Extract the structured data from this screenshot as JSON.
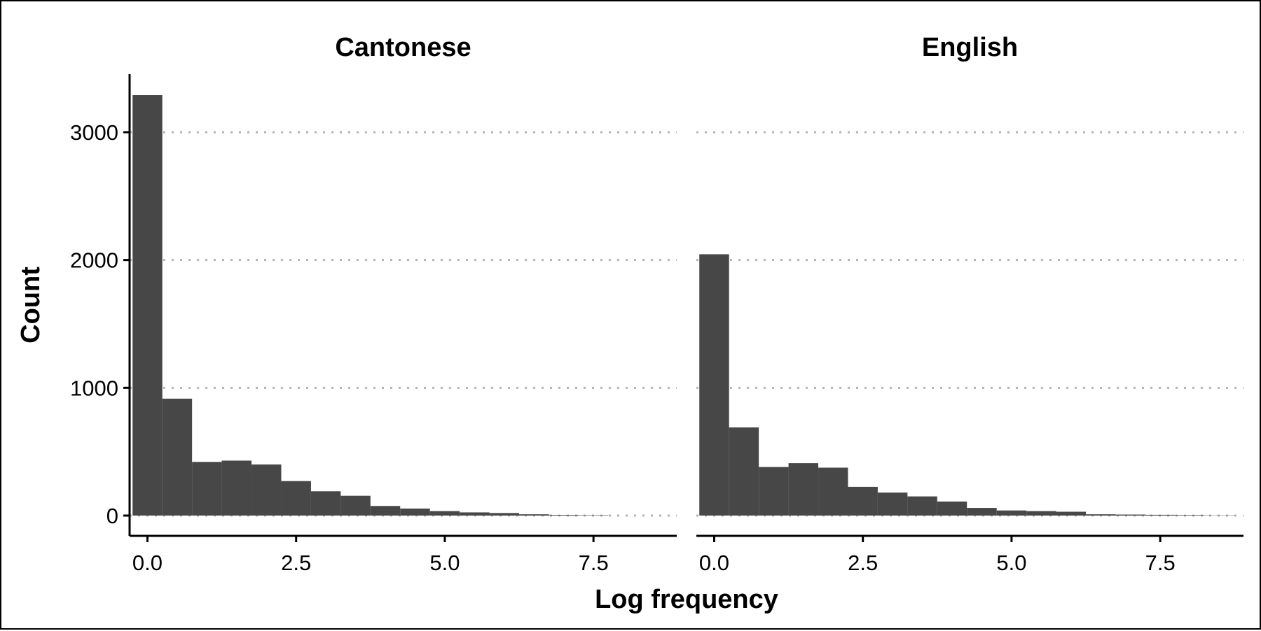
{
  "chart_data": {
    "type": "bar",
    "chart_kind": "faceted histogram",
    "xlabel": "Log frequency",
    "ylabel": "Count",
    "ylim": [
      0,
      3400
    ],
    "xlim": [
      -0.3,
      8.9
    ],
    "yticks": [
      0,
      1000,
      2000,
      3000
    ],
    "ytick_labels": [
      "0",
      "1000",
      "2000",
      "3000"
    ],
    "xticks": [
      0,
      2.5,
      5,
      7.5
    ],
    "xtick_labels": [
      "0.0",
      "2.5",
      "5.0",
      "7.5"
    ],
    "grid": "horizontal dotted",
    "bin_width": 0.5,
    "bar_color": "#474747",
    "facets": [
      {
        "title": "Cantonese",
        "bin_centers": [
          0,
          0.5,
          1,
          1.5,
          2,
          2.5,
          3,
          3.5,
          4,
          4.5,
          5,
          5.5,
          6,
          6.5,
          7,
          7.5
        ],
        "values": [
          3290,
          915,
          420,
          430,
          400,
          270,
          190,
          155,
          75,
          55,
          35,
          25,
          20,
          10,
          5,
          3
        ]
      },
      {
        "title": "English",
        "bin_centers": [
          0,
          0.5,
          1,
          1.5,
          2,
          2.5,
          3,
          3.5,
          4,
          4.5,
          5,
          5.5,
          6,
          6.5,
          7,
          7.5,
          8,
          8.5
        ],
        "values": [
          2045,
          690,
          380,
          410,
          375,
          225,
          180,
          150,
          110,
          60,
          40,
          35,
          30,
          10,
          8,
          6,
          4,
          2
        ]
      }
    ]
  }
}
